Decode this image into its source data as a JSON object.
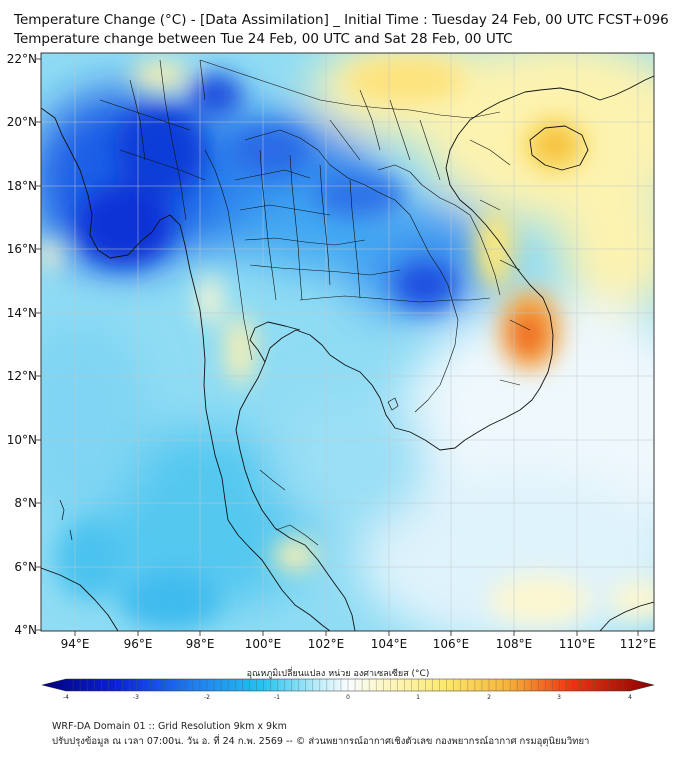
{
  "title": {
    "line1": "Temperature Change (°C) - [Data Assimilation] _ Initial Time : Tuesday 24 Feb, 00 UTC FCST+096",
    "line2": "Temperature change between Tue 24 Feb, 00 UTC and Sat 28 Feb, 00 UTC"
  },
  "axes": {
    "lat_labels": [
      "22°N",
      "20°N",
      "18°N",
      "16°N",
      "14°N",
      "12°N",
      "10°N",
      "8°N",
      "6°N",
      "4°N"
    ],
    "lon_labels": [
      "94°E",
      "96°E",
      "98°E",
      "100°E",
      "102°E",
      "104°E",
      "106°E",
      "108°E",
      "110°E",
      "112°E"
    ]
  },
  "colorbar": {
    "title": "อุณหภูมิเปลี่ยนแปลง หน่วย องศาเซลเซียส (°C)",
    "ticks": [
      "-4",
      "-3",
      "-2",
      "-1",
      "0",
      "1",
      "2",
      "3",
      "4"
    ],
    "colors": {
      "cold_extreme": "#00007a",
      "cold": "#0a3fe0",
      "cool": "#22c3ef",
      "neutral": "#f5fbff",
      "warm": "#fce96a",
      "hot": "#f59a2a",
      "hot_extreme": "#8a0000"
    }
  },
  "footer": {
    "line1": "WRF-DA Domain 01 :: Grid Resolution 9km x 9km",
    "line2": "ปรับปรุงข้อมูล ณ เวลา 07:00น. วัน อ. ที่ 24 ก.พ. 2569 -- © ส่วนพยากรณ์อากาศเชิงตัวเลข กองพยากรณ์อากาศ กรมอุตุนิยมวิทยา"
  }
}
